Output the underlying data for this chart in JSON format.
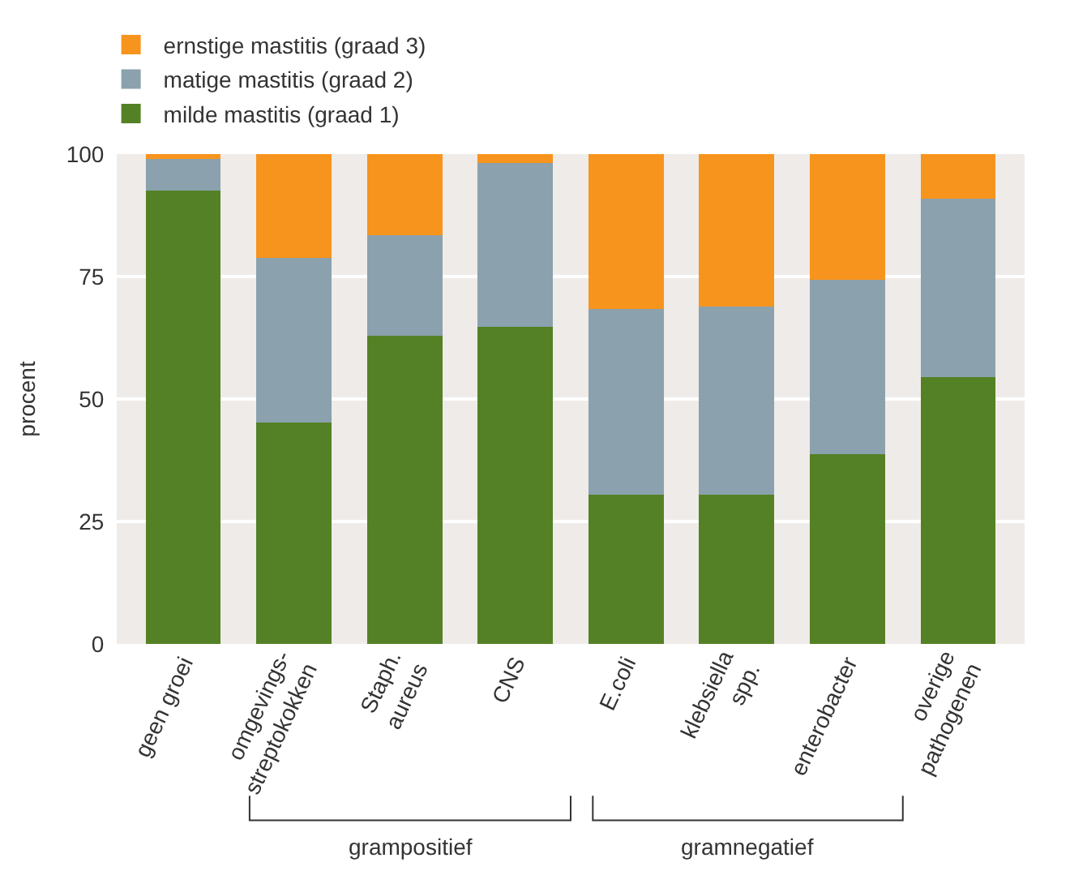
{
  "chart_data": {
    "type": "bar",
    "stacked": true,
    "categories": [
      "geen groei",
      "omgevings-\nstreptokokken",
      "Staph.\naureus",
      "CNS",
      "E.coli",
      "klebsiella\nspp.",
      "enterobacter",
      "overige\npathogenen"
    ],
    "series": [
      {
        "name": "milde mastitis (graad 1)",
        "color": "#548125",
        "values": [
          92.6,
          45.2,
          62.9,
          64.8,
          30.5,
          30.5,
          38.7,
          54.4
        ]
      },
      {
        "name": "matige mastitis (graad 2)",
        "color": "#8ba1ad",
        "values": [
          6.4,
          33.6,
          20.5,
          33.3,
          37.9,
          38.3,
          35.6,
          36.5
        ]
      },
      {
        "name": "ernstige mastitis (graad 3)",
        "color": "#f7941d",
        "values": [
          1.0,
          21.2,
          16.6,
          1.9,
          31.6,
          31.2,
          25.7,
          9.1
        ]
      }
    ],
    "ylabel": "procent",
    "ylim": [
      0,
      100
    ],
    "yticks": [
      0,
      25,
      50,
      75,
      100
    ],
    "grid": "y",
    "legend": "top left",
    "annotations": [
      "grampositief",
      "gramnegatief"
    ]
  }
}
